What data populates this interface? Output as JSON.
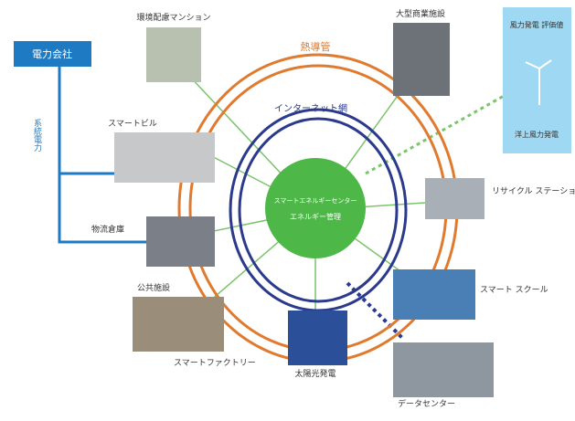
{
  "grid_label": "電力会社",
  "grid_line_label": "系統電力",
  "heat_ring_label": "熱導管",
  "network_ring_label": "インターネット網",
  "center": {
    "title": "スマートエネルギーセンター",
    "subtitle": "エネルギー管理"
  },
  "wind": {
    "top": "風力発電 評価値",
    "bottom": "洋上風力発電"
  },
  "nodes": [
    {
      "label": "環境配慮マンション"
    },
    {
      "label": "大型商業施設"
    },
    {
      "label": "スマートビル"
    },
    {
      "label": "物流倉庫"
    },
    {
      "label": "リサイクル ステーション"
    },
    {
      "label": "公共施設"
    },
    {
      "label": "スマート スクール"
    },
    {
      "label": "スマートファクトリー"
    },
    {
      "label": "太陽光発電"
    },
    {
      "label": "データセンター"
    }
  ]
}
